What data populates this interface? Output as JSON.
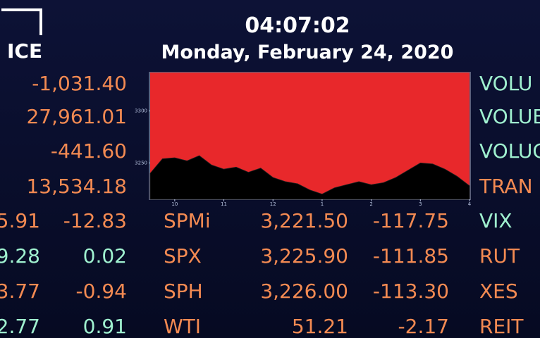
{
  "header": {
    "logo": "ICE",
    "time": "04:07:02",
    "date": "Monday, February 24, 2020"
  },
  "left_values": [
    "-1,031.40",
    "27,961.01",
    "-441.60",
    "13,534.18"
  ],
  "table": {
    "rows": [
      [
        "5.91",
        "-12.83",
        "SPMi",
        "3,221.50",
        "-117.75"
      ],
      [
        "9.28",
        "0.02",
        "SPX",
        "3,225.90",
        "-111.85"
      ],
      [
        "3.77",
        "-0.94",
        "SPH",
        "3,226.00",
        "-113.30"
      ],
      [
        "2.77",
        "0.91",
        "WTI",
        "51.21",
        "-2.17"
      ]
    ]
  },
  "right_labels": [
    "VOLU",
    "VOLUE",
    "VOLUC",
    "TRAN",
    "VIX",
    "RUT",
    "XES",
    "REIT"
  ],
  "chart_data": {
    "type": "area",
    "color": "#e8282b",
    "x": [
      9.5,
      9.75,
      10,
      10.25,
      10.5,
      10.75,
      11,
      11.25,
      11.5,
      11.75,
      12,
      12.25,
      12.5,
      12.75,
      13,
      13.25,
      13.5,
      13.75,
      14,
      14.25,
      14.5,
      14.75,
      15,
      15.25,
      15.5,
      15.75,
      16
    ],
    "values": [
      3240,
      3254,
      3255,
      3252,
      3257,
      3248,
      3244,
      3246,
      3241,
      3245,
      3236,
      3232,
      3230,
      3224,
      3220,
      3226,
      3229,
      3232,
      3229,
      3231,
      3236,
      3243,
      3250,
      3249,
      3244,
      3237,
      3228
    ],
    "xlim": [
      9.5,
      16
    ],
    "xticks": [
      10,
      11,
      12,
      {
        "value": 13,
        "label": "1"
      },
      {
        "value": 14,
        "label": "2"
      },
      {
        "value": 15,
        "label": "3"
      },
      {
        "value": 16,
        "label": "4"
      }
    ],
    "ylim": [
      3215,
      3337
    ],
    "yticks": [
      3250,
      3300
    ]
  }
}
